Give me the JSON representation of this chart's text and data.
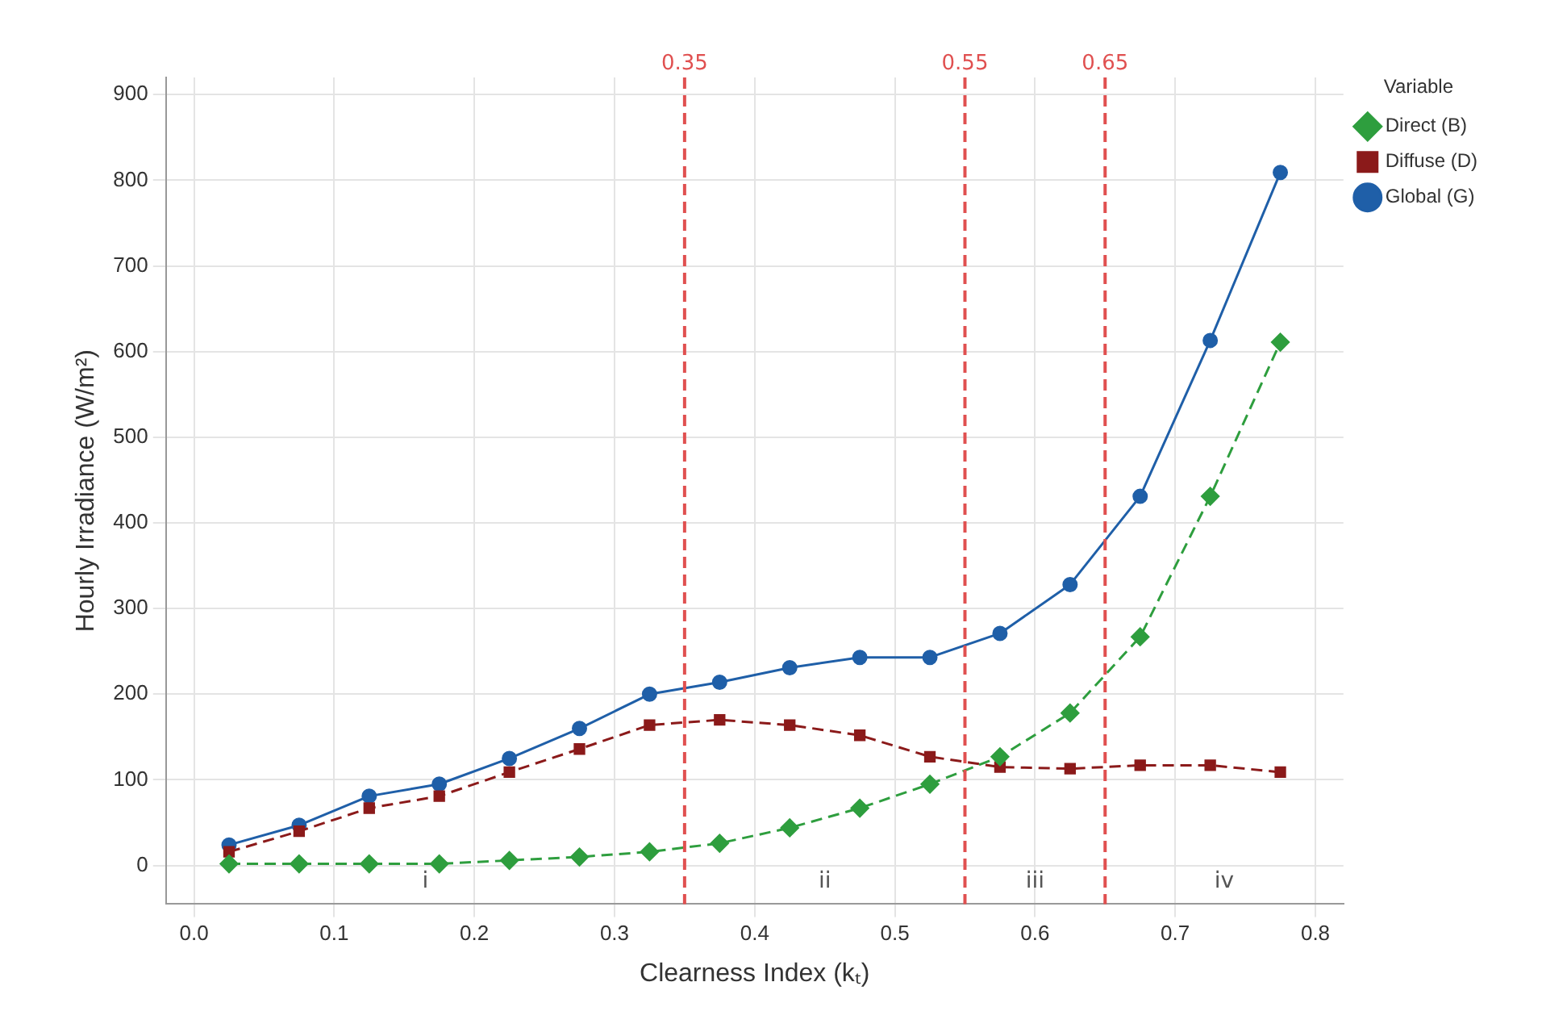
{
  "chart_data": {
    "type": "line",
    "xlabel": "Clearness Index (kₜ)",
    "ylabel": "Hourly Irradiance (W/m²)",
    "legend_title": "Variable",
    "legend": "top right",
    "grid": true,
    "x": [
      0.025,
      0.075,
      0.125,
      0.175,
      0.225,
      0.275,
      0.325,
      0.375,
      0.425,
      0.475,
      0.525,
      0.575,
      0.625,
      0.675,
      0.725,
      0.775
    ],
    "series": [
      {
        "name": "Global (G)",
        "color": "#1f5fa8",
        "marker": "circle",
        "line_style": "solid",
        "values": [
          24,
          47,
          81,
          95,
          125,
          160,
          200,
          214,
          231,
          243,
          243,
          271,
          328,
          431,
          613,
          809
        ]
      },
      {
        "name": "Diffuse (D)",
        "color": "#8b1a1a",
        "marker": "square",
        "line_style": "dashed",
        "values": [
          16,
          40,
          67,
          81,
          109,
          136,
          164,
          170,
          164,
          152,
          127,
          115,
          113,
          117,
          117,
          109
        ]
      },
      {
        "name": "Direct (B)",
        "color": "#2e9e3e",
        "marker": "diamond",
        "line_style": "dashed",
        "values": [
          2,
          2,
          2,
          2,
          6,
          10,
          16,
          26,
          44,
          67,
          95,
          127,
          178,
          267,
          431,
          611
        ]
      }
    ],
    "xlim": [
      -0.02,
      0.82
    ],
    "xticks": [
      {
        "value": 0,
        "label": "0.0"
      },
      0.1,
      0.2,
      0.3,
      0.4,
      0.5,
      0.6,
      0.7,
      0.8
    ],
    "ylim": [
      -45,
      920
    ],
    "yticks": [
      0,
      100,
      200,
      300,
      400,
      500,
      600,
      700,
      800,
      900
    ],
    "ref_lines": [
      {
        "axis": "x",
        "value": 0.35,
        "label": "0.35",
        "color": "#e05050",
        "line_style": "dashed"
      },
      {
        "axis": "x",
        "value": 0.55,
        "label": "0.55",
        "color": "#e05050",
        "line_style": "dashed"
      },
      {
        "axis": "x",
        "value": 0.65,
        "label": "0.65",
        "color": "#e05050",
        "line_style": "dashed"
      }
    ],
    "annotations": [
      "i",
      "ii",
      "iii",
      "iv"
    ]
  }
}
